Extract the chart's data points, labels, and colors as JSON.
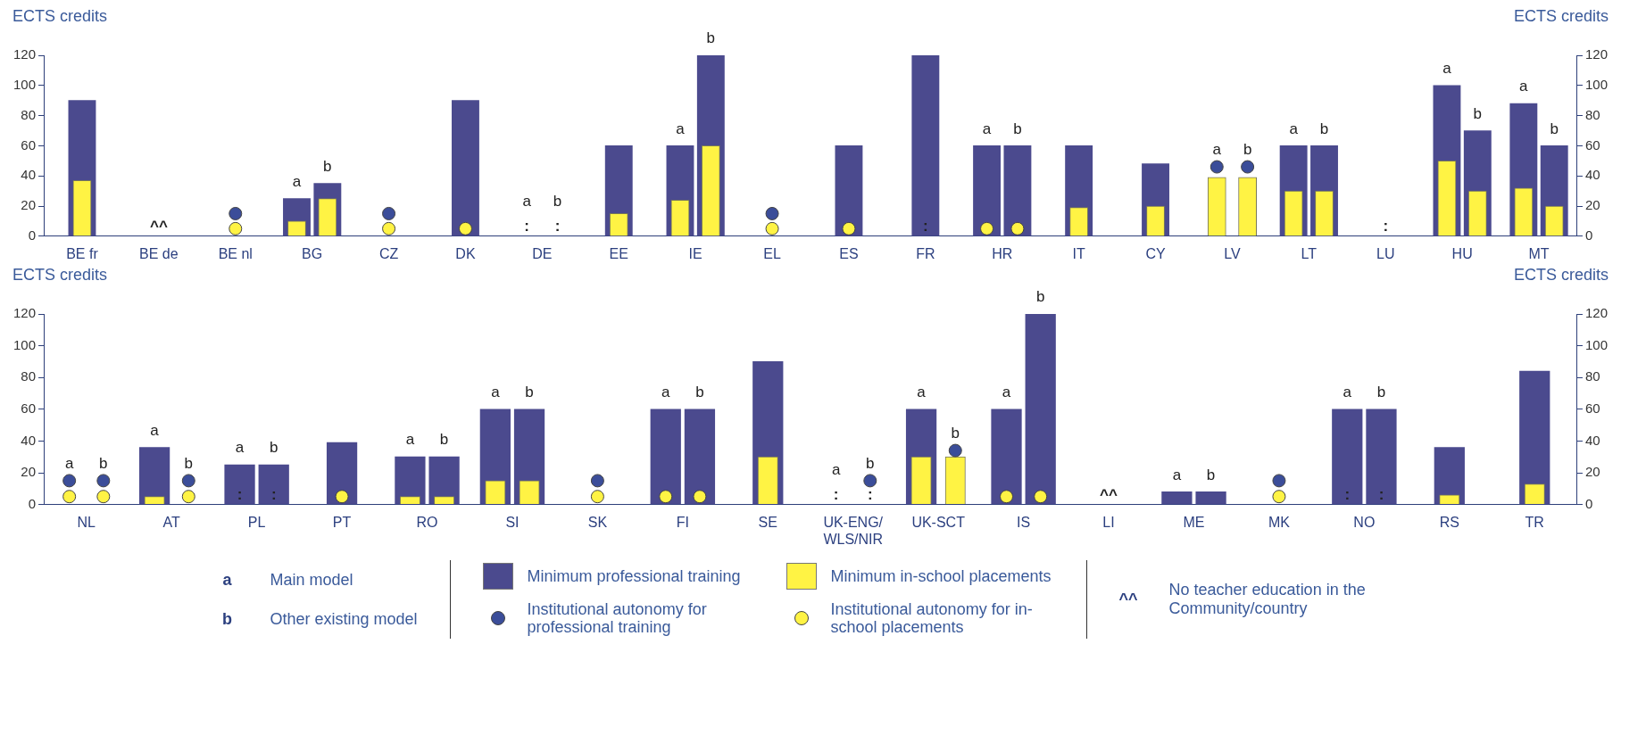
{
  "chart_data": [
    {
      "type": "bar",
      "ylabel": "ECTS credits",
      "y2label": "ECTS credits",
      "ylim": [
        0,
        120
      ],
      "yticks": [
        0,
        20,
        40,
        60,
        80,
        100,
        120
      ],
      "y2lim": [
        0,
        120
      ],
      "y2ticks": [
        0,
        20,
        40,
        60,
        80,
        100,
        120
      ],
      "marker": "circle",
      "categories": [
        "BE fr",
        "BE de",
        "BE nl",
        "BG",
        "CZ",
        "DK",
        "DE",
        "EE",
        "IE",
        "EL",
        "ES",
        "FR",
        "HR",
        "IT",
        "CY",
        "LV",
        "LT",
        "LU",
        "HU",
        "MT"
      ],
      "series": [
        {
          "color": "#4b4a8e",
          "values": [
            90,
            null,
            null,
            25,
            null,
            90,
            null,
            60,
            60,
            null,
            60,
            120,
            60,
            60,
            48,
            null,
            60,
            null,
            100,
            88
          ],
          "value_labels": [
            null,
            null,
            null,
            "a",
            null,
            null,
            "a",
            null,
            "a",
            null,
            null,
            null,
            "a",
            null,
            null,
            "a",
            "a",
            null,
            "a",
            "a"
          ]
        },
        {
          "color": "#fff344",
          "values": [
            37,
            null,
            null,
            10,
            null,
            null,
            null,
            15,
            24,
            null,
            null,
            null,
            null,
            19,
            20,
            39,
            30,
            null,
            50,
            32
          ],
          "value_labels": [
            null,
            "^^",
            null,
            null,
            null,
            null,
            ":",
            null,
            null,
            null,
            null,
            ":",
            null,
            null,
            null,
            null,
            null,
            ":",
            null,
            null
          ]
        },
        {
          "color": "#4b4a8e",
          "values": [
            null,
            null,
            null,
            35,
            null,
            null,
            null,
            null,
            120,
            null,
            null,
            null,
            60,
            null,
            null,
            null,
            60,
            null,
            70,
            60
          ],
          "value_labels": [
            null,
            null,
            null,
            "b",
            null,
            null,
            "b",
            null,
            "b",
            null,
            null,
            null,
            "b",
            null,
            null,
            "b",
            "b",
            null,
            "b",
            "b"
          ]
        },
        {
          "color": "#fff344",
          "values": [
            null,
            null,
            null,
            25,
            null,
            null,
            null,
            null,
            60,
            null,
            null,
            null,
            null,
            null,
            null,
            39,
            30,
            null,
            30,
            20
          ],
          "value_labels": [
            null,
            null,
            null,
            null,
            null,
            null,
            ":",
            null,
            null,
            null,
            null,
            null,
            null,
            null,
            null,
            null,
            null,
            null,
            null,
            null
          ]
        },
        {
          "type": "scatter",
          "color": "#3b4d99",
          "values": [
            null,
            null,
            15,
            null,
            15,
            null,
            null,
            null,
            null,
            15,
            null,
            null,
            null,
            null,
            null,
            46,
            null,
            null,
            null,
            null
          ]
        },
        {
          "type": "scatter",
          "color": "#fff344",
          "values": [
            null,
            null,
            5,
            null,
            5,
            5,
            null,
            null,
            null,
            5,
            5,
            null,
            5,
            null,
            null,
            null,
            null,
            null,
            null,
            null
          ]
        },
        {
          "type": "scatter",
          "color": "#3b4d99",
          "values": [
            null,
            null,
            null,
            null,
            null,
            null,
            null,
            null,
            null,
            null,
            null,
            null,
            null,
            null,
            null,
            46,
            null,
            null,
            null,
            null
          ]
        },
        {
          "type": "scatter",
          "color": "#fff344",
          "values": [
            null,
            null,
            null,
            null,
            null,
            null,
            null,
            null,
            null,
            null,
            null,
            null,
            5,
            null,
            null,
            null,
            null,
            null,
            null,
            null
          ]
        }
      ]
    },
    {
      "type": "bar",
      "ylabel": "ECTS credits",
      "y2label": "ECTS credits",
      "ylim": [
        0,
        120
      ],
      "yticks": [
        0,
        20,
        40,
        60,
        80,
        100,
        120
      ],
      "y2lim": [
        0,
        120
      ],
      "y2ticks": [
        0,
        20,
        40,
        60,
        80,
        100,
        120
      ],
      "marker": "circle",
      "legend": "bottom",
      "annotations": [
        "a Main model",
        "b Other existing model",
        "^^ No teacher education in the Community/country"
      ],
      "categories": [
        "NL",
        "AT",
        "PL",
        "PT",
        "RO",
        "SI",
        "SK",
        "FI",
        "SE",
        "UK-ENG/WLS/NIR",
        "UK-SCT",
        "IS",
        "LI",
        "ME",
        "MK",
        "NO",
        "RS",
        "TR"
      ],
      "series": [
        {
          "name": "Minimum professional training",
          "color": "#4b4a8e",
          "values": [
            null,
            36,
            25,
            39,
            30,
            60,
            null,
            60,
            90,
            null,
            60,
            60,
            null,
            8,
            null,
            60,
            36,
            84
          ],
          "value_labels": [
            "a",
            "a",
            "a",
            null,
            "a",
            "a",
            null,
            "a",
            null,
            "a",
            "a",
            "a",
            null,
            "a",
            null,
            "a",
            null,
            null
          ]
        },
        {
          "name": "Minimum in-school placements",
          "color": "#fff344",
          "values": [
            null,
            5,
            null,
            null,
            5,
            15,
            null,
            null,
            30,
            null,
            30,
            null,
            null,
            null,
            null,
            null,
            6,
            13
          ],
          "value_labels": [
            null,
            null,
            ":",
            null,
            null,
            null,
            null,
            null,
            null,
            ":",
            null,
            null,
            "^^",
            null,
            null,
            ":",
            null,
            null
          ]
        },
        {
          "color": "#4b4a8e",
          "values": [
            null,
            null,
            25,
            null,
            30,
            60,
            null,
            60,
            null,
            null,
            null,
            120,
            null,
            8,
            null,
            60,
            null,
            null
          ],
          "value_labels": [
            "b",
            "b",
            "b",
            null,
            "b",
            "b",
            null,
            "b",
            null,
            "b",
            "b",
            "b",
            null,
            "b",
            null,
            "b",
            null,
            null
          ]
        },
        {
          "color": "#fff344",
          "values": [
            null,
            null,
            null,
            null,
            5,
            15,
            null,
            null,
            null,
            null,
            30,
            null,
            null,
            null,
            null,
            null,
            null,
            null
          ],
          "value_labels": [
            null,
            null,
            ":",
            null,
            null,
            null,
            null,
            null,
            null,
            ":",
            null,
            null,
            null,
            null,
            null,
            ":",
            null,
            null
          ]
        },
        {
          "type": "scatter",
          "name": "Institutional autonomy for professional training",
          "color": "#3b4d99",
          "values": [
            15,
            null,
            null,
            null,
            null,
            null,
            15,
            null,
            null,
            null,
            null,
            null,
            null,
            null,
            15,
            null,
            null,
            null
          ]
        },
        {
          "type": "scatter",
          "name": "Institutional autonomy for in-school placements",
          "color": "#fff344",
          "values": [
            5,
            null,
            null,
            5,
            null,
            null,
            5,
            5,
            null,
            null,
            null,
            5,
            null,
            null,
            5,
            null,
            null,
            null
          ]
        },
        {
          "type": "scatter",
          "color": "#3b4d99",
          "values": [
            15,
            15,
            null,
            null,
            null,
            null,
            null,
            null,
            null,
            15,
            34,
            null,
            null,
            null,
            null,
            null,
            null,
            null
          ]
        },
        {
          "type": "scatter",
          "color": "#fff344",
          "values": [
            5,
            5,
            null,
            null,
            null,
            null,
            null,
            5,
            null,
            null,
            null,
            5,
            null,
            null,
            null,
            null,
            null,
            null
          ]
        }
      ]
    }
  ]
}
